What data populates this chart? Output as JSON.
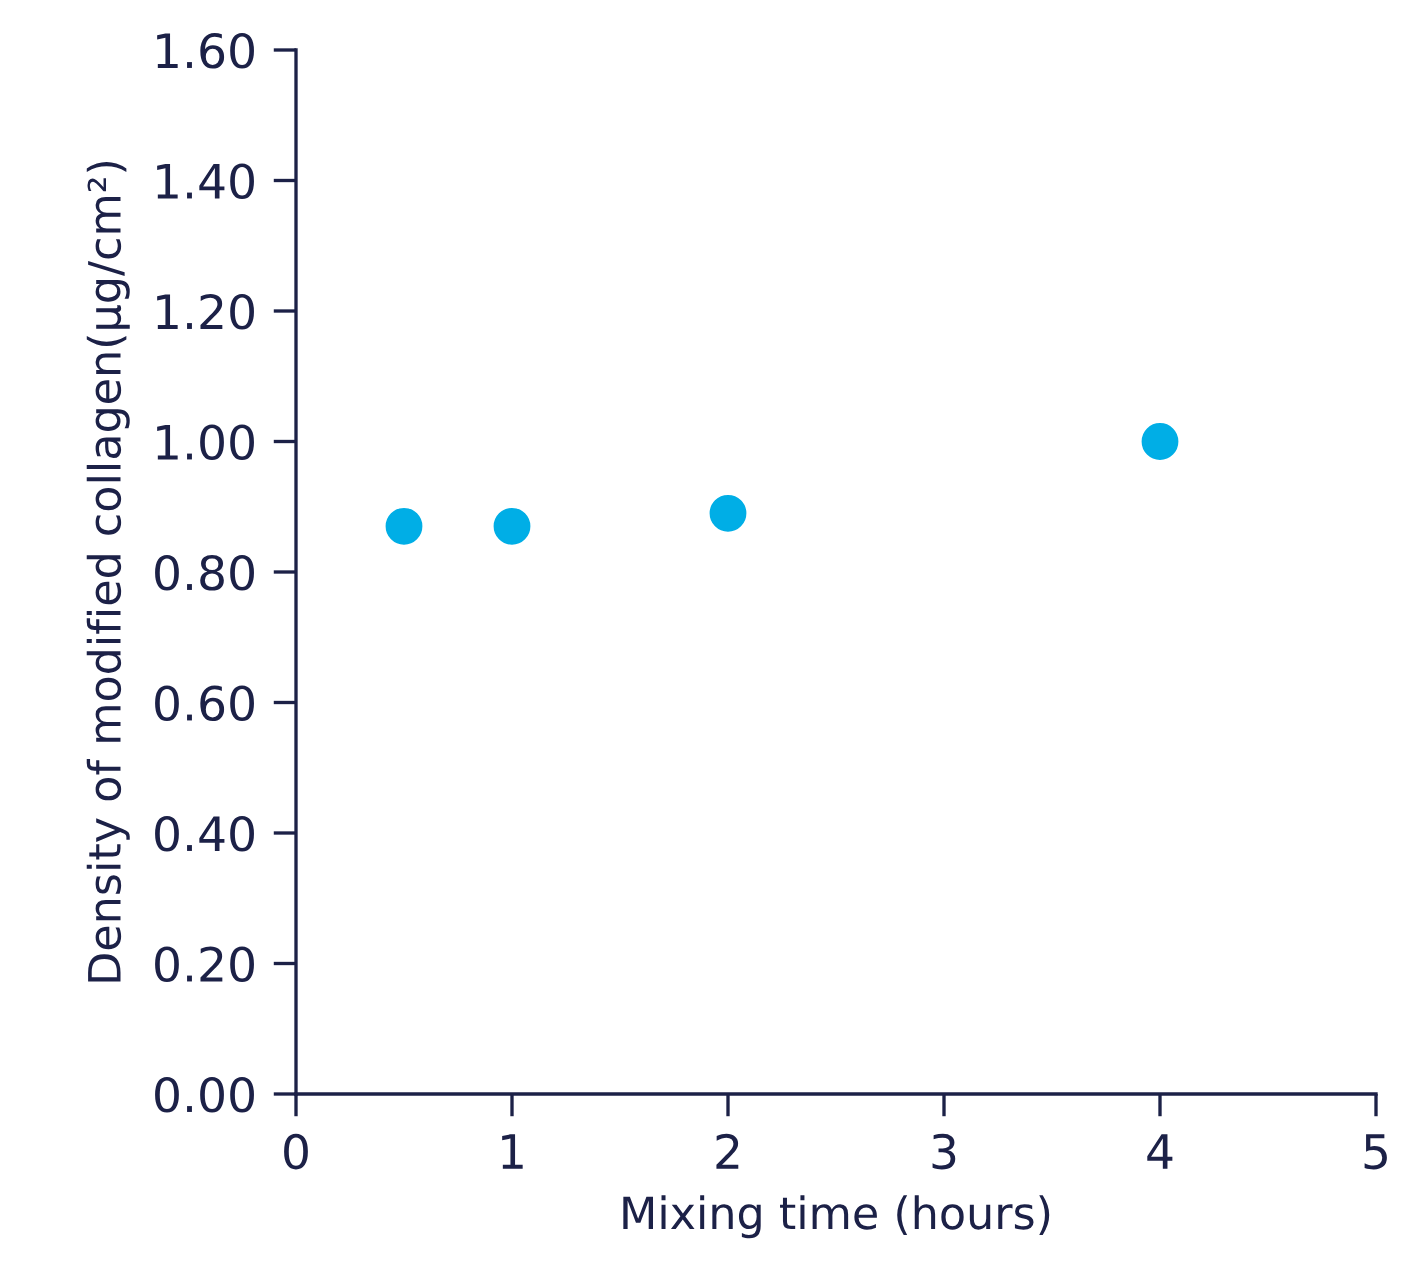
{
  "chart_data": {
    "type": "scatter",
    "xlabel": "Mixing time (hours)",
    "ylabel": "Density of modified collagen(µg/cm²)",
    "x": [
      0.5,
      1,
      2,
      4
    ],
    "values": [
      0.87,
      0.87,
      0.89,
      1.0
    ],
    "color": "#00aee6",
    "marker": "circle",
    "grid": false,
    "legend": false,
    "xlim": [
      0,
      5
    ],
    "xticks": [
      0,
      1,
      2,
      3,
      4,
      5
    ],
    "ylim": [
      0,
      1.6
    ],
    "yticks": [
      {
        "value": 0,
        "label": "0.00"
      },
      {
        "value": 0.2,
        "label": "0.20"
      },
      {
        "value": 0.4,
        "label": "0.40"
      },
      {
        "value": 0.6,
        "label": "0.60"
      },
      {
        "value": 0.8,
        "label": "0.80"
      },
      {
        "value": 1.0,
        "label": "1.00"
      },
      {
        "value": 1.2,
        "label": "1.20"
      },
      {
        "value": 1.4,
        "label": "1.40"
      },
      {
        "value": 1.6,
        "label": "1.60"
      }
    ]
  }
}
